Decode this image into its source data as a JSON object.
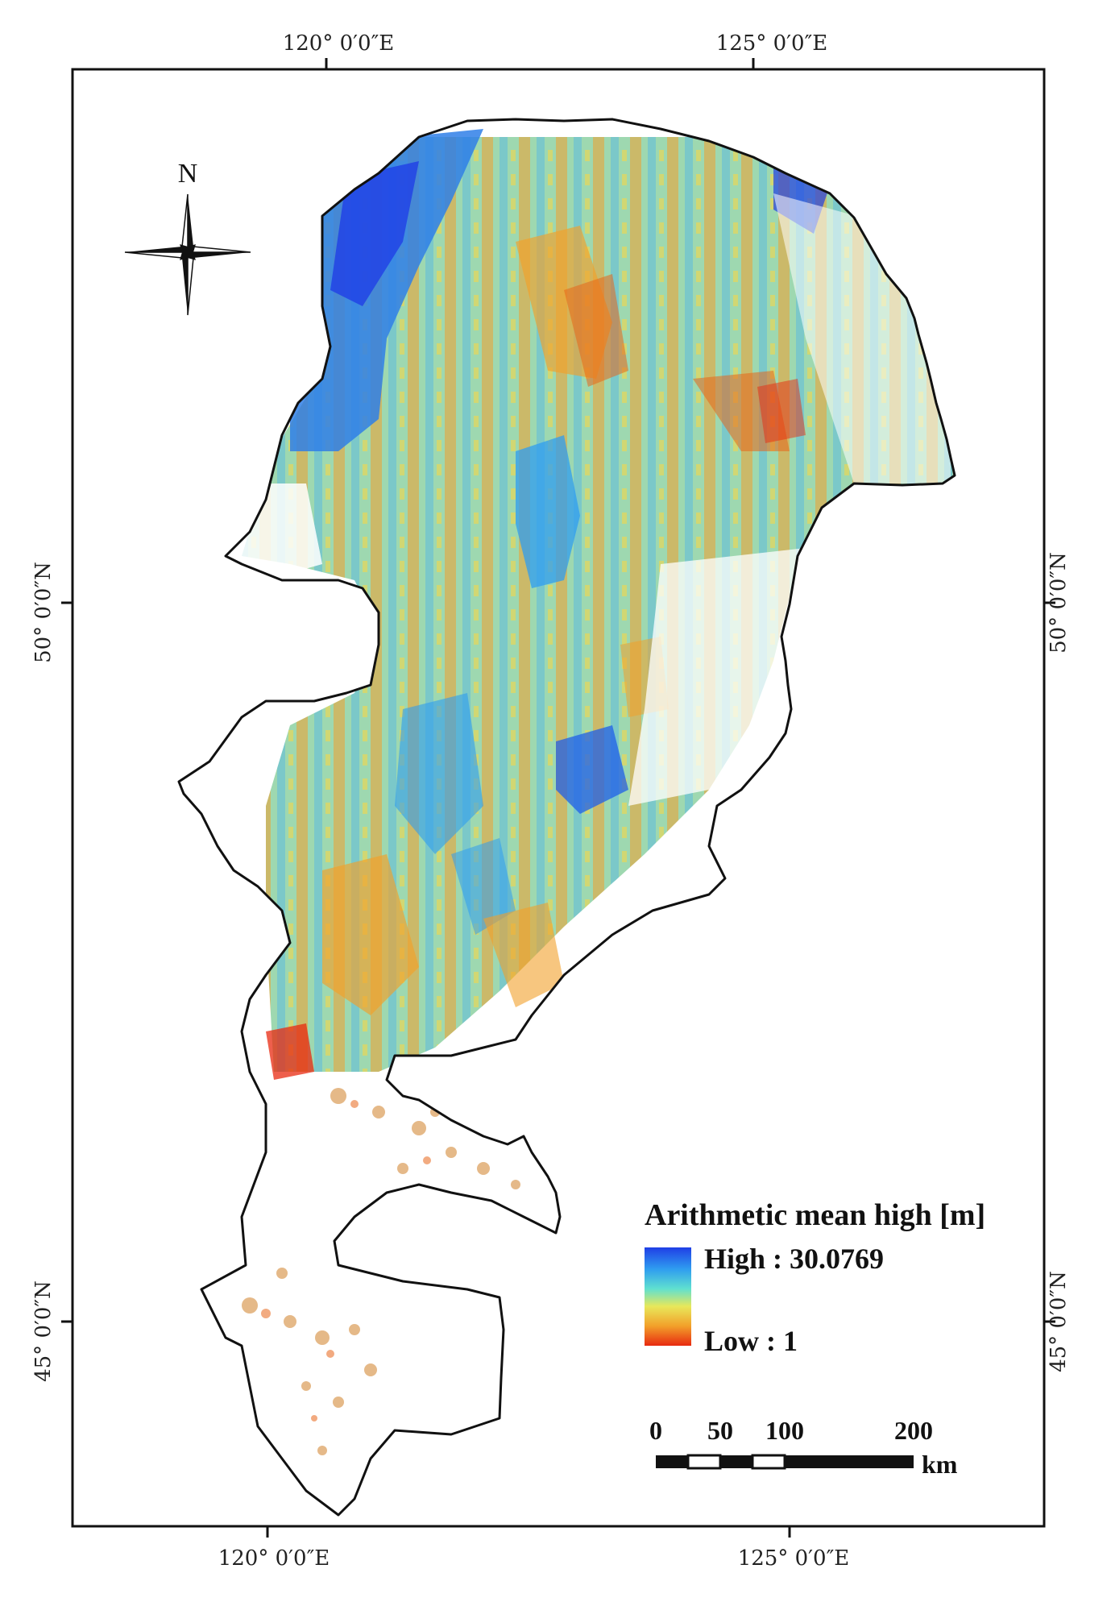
{
  "map": {
    "graticule": {
      "top": [
        "120° 0′0″E",
        "125° 0′0″E"
      ],
      "bottom": [
        "120° 0′0″E",
        "125° 0′0″E"
      ],
      "left": [
        "50° 0′0″N",
        "45° 0′0″N"
      ],
      "right": [
        "50° 0′0″N",
        "45° 0′0″N"
      ]
    },
    "north_arrow": {
      "label": "N"
    },
    "legend": {
      "title": "Arithmetic mean high [m]",
      "high_label": "High : 30.0769",
      "low_label": "Low : 1",
      "high_value": 30.0769,
      "low_value": 1,
      "colors": [
        "#1f3fe6",
        "#2f9df0",
        "#5fe0d0",
        "#e8e85a",
        "#f2a02a",
        "#e82a10"
      ]
    },
    "scale_bar": {
      "labels": [
        "0",
        "50",
        "100",
        "200"
      ],
      "unit": "km"
    }
  }
}
